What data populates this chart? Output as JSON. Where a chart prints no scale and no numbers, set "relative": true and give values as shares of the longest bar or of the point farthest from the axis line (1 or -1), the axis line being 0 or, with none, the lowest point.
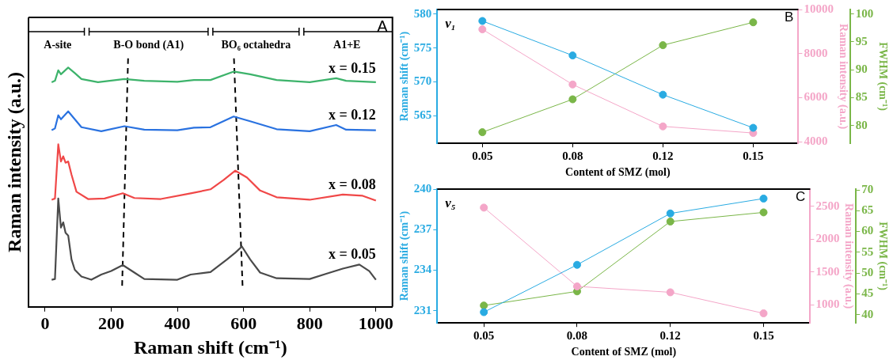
{
  "chart_data": [
    {
      "type": "line",
      "relative": true,
      "xlabel": "Raman shift (cm⁻¹)",
      "ylabel": "Raman intensity (a.u.)",
      "xlim": [
        -50,
        1050
      ],
      "xticks": [
        0,
        200,
        400,
        600,
        800,
        1000
      ],
      "tick_labels": "x",
      "series": [
        {
          "name": "x = 0.05",
          "color": "#4a4a4a",
          "x": [
            20,
            30,
            40,
            48,
            55,
            62,
            70,
            80,
            90,
            110,
            140,
            170,
            200,
            235,
            270,
            300,
            400,
            440,
            500,
            550,
            575,
            595,
            620,
            650,
            700,
            800,
            850,
            900,
            950,
            980,
            1000
          ],
          "values": [
            0.109,
            0.112,
            0.436,
            0.319,
            0.34,
            0.298,
            0.287,
            0.191,
            0.149,
            0.122,
            0.109,
            0.13,
            0.144,
            0.168,
            0.138,
            0.112,
            0.109,
            0.13,
            0.14,
            0.191,
            0.218,
            0.243,
            0.191,
            0.138,
            0.115,
            0.112,
            0.133,
            0.154,
            0.17,
            0.144,
            0.109
          ]
        },
        {
          "name": "x = 0.08",
          "color": "#f04848",
          "x": [
            20,
            30,
            40,
            48,
            55,
            62,
            70,
            80,
            95,
            130,
            180,
            235,
            270,
            350,
            440,
            500,
            540,
            575,
            610,
            650,
            700,
            800,
            900,
            960,
            1000
          ],
          "values": [
            0.431,
            0.436,
            0.654,
            0.585,
            0.606,
            0.58,
            0.585,
            0.532,
            0.463,
            0.434,
            0.436,
            0.457,
            0.438,
            0.434,
            0.457,
            0.473,
            0.511,
            0.548,
            0.521,
            0.468,
            0.441,
            0.431,
            0.452,
            0.447,
            0.428
          ]
        },
        {
          "name": "x = 0.12",
          "color": "#2a72e0",
          "x": [
            20,
            30,
            40,
            48,
            70,
            90,
            110,
            170,
            240,
            300,
            400,
            450,
            500,
            570,
            620,
            700,
            800,
            880,
            910,
            1000
          ],
          "values": [
            0.711,
            0.718,
            0.771,
            0.755,
            0.787,
            0.755,
            0.723,
            0.707,
            0.727,
            0.713,
            0.711,
            0.721,
            0.723,
            0.766,
            0.747,
            0.715,
            0.707,
            0.732,
            0.713,
            0.711
          ]
        },
        {
          "name": "x = 0.15",
          "color": "#3db36b",
          "x": [
            20,
            30,
            40,
            48,
            70,
            90,
            110,
            160,
            240,
            300,
            400,
            450,
            500,
            570,
            620,
            700,
            800,
            880,
            910,
            1000
          ],
          "values": [
            0.904,
            0.91,
            0.952,
            0.936,
            0.963,
            0.941,
            0.917,
            0.904,
            0.917,
            0.91,
            0.906,
            0.913,
            0.913,
            0.947,
            0.936,
            0.913,
            0.904,
            0.92,
            0.91,
            0.904
          ]
        },
        {
          "type": "line",
          "color": "#000000",
          "line_style": "dashed",
          "x": [
            251,
            233
          ],
          "values": [
            1,
            0.085
          ]
        },
        {
          "type": "line",
          "color": "#000000",
          "line_style": "dashed",
          "x": [
            571,
            597
          ],
          "values": [
            1,
            0.085
          ]
        }
      ],
      "annotations": [
        "A-site",
        "B-O bond (A1)",
        "BO₆ octahedra",
        "A1+E",
        "A"
      ]
    },
    {
      "type": "line",
      "marker": "circle",
      "categories": [
        "0.05",
        "0.08",
        "0.12",
        "0.15"
      ],
      "xlabel": "Content of SMZ (mol)",
      "ylabel": "Raman shift (cm⁻¹)",
      "y2label": "Raman intensity (a.u.)",
      "y3label": "FWHM (cm⁻¹)",
      "ylim": [
        560.9,
        580.7
      ],
      "yticks": [
        565,
        570,
        575,
        580
      ],
      "y2lim": [
        3930,
        10000
      ],
      "y2ticks": [
        4000,
        6000,
        8000,
        10000
      ],
      "y3lim": [
        76.8,
        100.8
      ],
      "y3ticks": [
        80,
        85,
        90,
        95,
        100
      ],
      "series": [
        {
          "color": "#29abe2",
          "values": [
            579.0,
            573.9,
            568.1,
            563.2
          ]
        },
        {
          "color": "#f4a6c8",
          "axis": "y2",
          "values": [
            9100,
            6600,
            4700,
            4400
          ]
        },
        {
          "color": "#7ab648",
          "axis": "y3",
          "values": [
            78.8,
            84.7,
            94.4,
            98.5
          ]
        }
      ],
      "annotations": [
        "v₁",
        "B"
      ]
    },
    {
      "type": "line",
      "marker": "circle",
      "categories": [
        "0.05",
        "0.08",
        "0.12",
        "0.15"
      ],
      "xlabel": "Content of SMZ (mol)",
      "ylabel": "Raman shift (cm⁻¹)",
      "y2label": "Raman intensity (a.u.)",
      "y3label": "FWHM (cm⁻¹)",
      "ylim": [
        230.1,
        240
      ],
      "yticks": [
        231,
        234,
        237,
        240
      ],
      "y2lim": [
        723,
        2762
      ],
      "y2ticks": [
        1000,
        1500,
        2000,
        2500
      ],
      "y3lim": [
        38,
        70.2
      ],
      "y3ticks": [
        40,
        45,
        50,
        55,
        60,
        65,
        70
      ],
      "series": [
        {
          "color": "#29abe2",
          "values": [
            230.9,
            234.4,
            238.2,
            239.3
          ]
        },
        {
          "color": "#f4a6c8",
          "axis": "y2",
          "values": [
            2480,
            1280,
            1190,
            870
          ]
        },
        {
          "color": "#7ab648",
          "axis": "y3",
          "values": [
            42.2,
            45.6,
            62.4,
            64.6
          ]
        }
      ],
      "annotations": [
        "v₅",
        "C"
      ]
    }
  ]
}
